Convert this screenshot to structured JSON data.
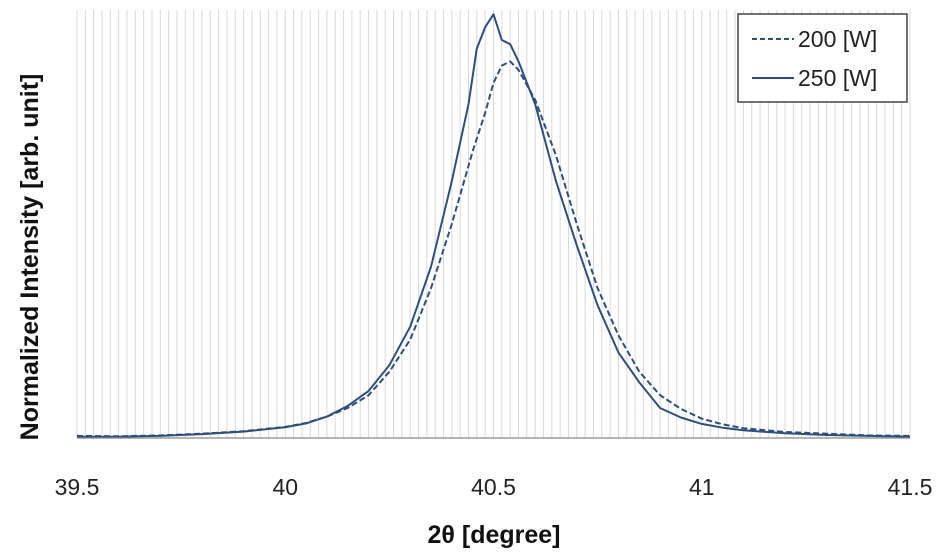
{
  "chart_data": {
    "type": "line",
    "xlabel": "2θ [degree]",
    "ylabel": "Normalized Intensity [arb. unit]",
    "xlim": [
      39.5,
      41.5
    ],
    "ylim": [
      0,
      1.0
    ],
    "x_ticks": [
      "39.5",
      "40",
      "40.5",
      "41",
      "41.5"
    ],
    "y_ticks_shown": false,
    "grid": "vertical minor lines every 0.02",
    "legend_position": "top-right",
    "series": [
      {
        "name": "200 [W]",
        "style": "dashed",
        "color": "#2f4f7a",
        "x": [
          39.5,
          39.6,
          39.7,
          39.8,
          39.9,
          40.0,
          40.05,
          40.1,
          40.15,
          40.2,
          40.25,
          40.3,
          40.35,
          40.4,
          40.45,
          40.48,
          40.5,
          40.52,
          40.54,
          40.56,
          40.6,
          40.65,
          40.7,
          40.75,
          40.8,
          40.85,
          40.9,
          40.95,
          41.0,
          41.05,
          41.1,
          41.2,
          41.3,
          41.4,
          41.5
        ],
        "y": [
          0.005,
          0.004,
          0.006,
          0.01,
          0.016,
          0.026,
          0.035,
          0.05,
          0.07,
          0.1,
          0.155,
          0.23,
          0.35,
          0.5,
          0.67,
          0.76,
          0.83,
          0.87,
          0.88,
          0.86,
          0.79,
          0.66,
          0.5,
          0.35,
          0.24,
          0.155,
          0.1,
          0.068,
          0.045,
          0.032,
          0.023,
          0.014,
          0.01,
          0.006,
          0.005
        ]
      },
      {
        "name": "250 [W]",
        "style": "solid",
        "color": "#2f4f7a",
        "x": [
          39.5,
          39.6,
          39.7,
          39.8,
          39.9,
          40.0,
          40.05,
          40.1,
          40.15,
          40.2,
          40.25,
          40.3,
          40.35,
          40.4,
          40.44,
          40.46,
          40.48,
          40.5,
          40.52,
          40.54,
          40.56,
          40.6,
          40.65,
          40.7,
          40.75,
          40.8,
          40.85,
          40.9,
          40.95,
          41.0,
          41.05,
          41.1,
          41.2,
          41.3,
          41.4,
          41.5
        ],
        "y": [
          0.003,
          0.003,
          0.005,
          0.009,
          0.015,
          0.025,
          0.034,
          0.05,
          0.075,
          0.11,
          0.17,
          0.26,
          0.4,
          0.6,
          0.78,
          0.91,
          0.96,
          0.99,
          0.93,
          0.92,
          0.88,
          0.78,
          0.6,
          0.45,
          0.31,
          0.2,
          0.13,
          0.07,
          0.048,
          0.033,
          0.024,
          0.018,
          0.011,
          0.007,
          0.005,
          0.003
        ]
      }
    ]
  }
}
